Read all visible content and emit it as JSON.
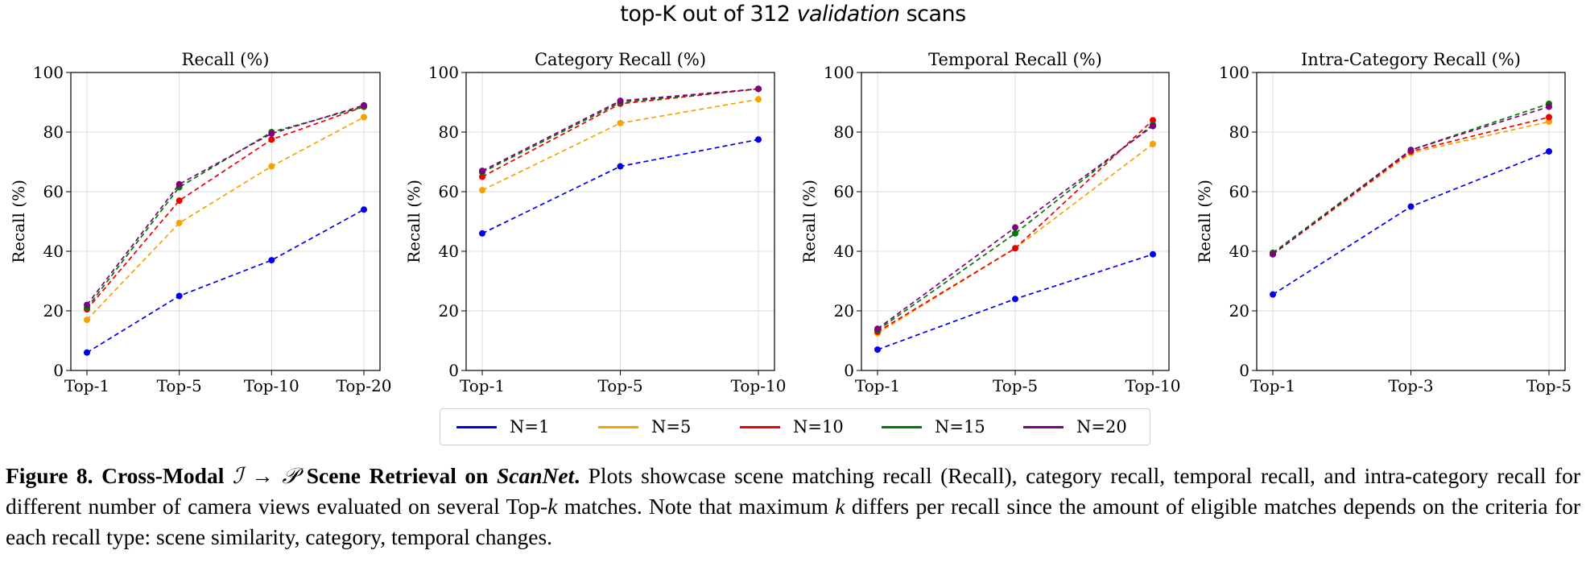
{
  "figure_title_parts": {
    "before": "top-K out of 312 ",
    "italic": "validation",
    "after": " scans"
  },
  "chart_data": [
    {
      "type": "line",
      "title": "Recall (%)",
      "ylabel": "Recall (%)",
      "categories": [
        "Top-1",
        "Top-5",
        "Top-10",
        "Top-20"
      ],
      "ylim": [
        0,
        100
      ],
      "yticks": [
        0,
        20,
        40,
        60,
        80,
        100
      ],
      "series": [
        {
          "name": "N=1",
          "values": [
            6,
            25,
            37,
            54
          ]
        },
        {
          "name": "N=5",
          "values": [
            17,
            49.5,
            68.5,
            85
          ]
        },
        {
          "name": "N=10",
          "values": [
            20.5,
            57,
            77.5,
            88.5
          ]
        },
        {
          "name": "N=15",
          "values": [
            21,
            61.5,
            80,
            88.5
          ]
        },
        {
          "name": "N=20",
          "values": [
            22,
            62.5,
            79.5,
            89
          ]
        }
      ]
    },
    {
      "type": "line",
      "title": "Category Recall (%)",
      "ylabel": "Recall (%)",
      "categories": [
        "Top-1",
        "Top-5",
        "Top-10"
      ],
      "ylim": [
        0,
        100
      ],
      "yticks": [
        0,
        20,
        40,
        60,
        80,
        100
      ],
      "series": [
        {
          "name": "N=1",
          "values": [
            46,
            68.5,
            77.5
          ]
        },
        {
          "name": "N=5",
          "values": [
            60.5,
            83,
            91
          ]
        },
        {
          "name": "N=10",
          "values": [
            65,
            89.5,
            94.5
          ]
        },
        {
          "name": "N=15",
          "values": [
            66.5,
            90,
            94.5
          ]
        },
        {
          "name": "N=20",
          "values": [
            67,
            90.5,
            94.5
          ]
        }
      ]
    },
    {
      "type": "line",
      "title": "Temporal Recall (%)",
      "ylabel": "Recall (%)",
      "categories": [
        "Top-1",
        "Top-5",
        "Top-10"
      ],
      "ylim": [
        0,
        100
      ],
      "yticks": [
        0,
        20,
        40,
        60,
        80,
        100
      ],
      "series": [
        {
          "name": "N=1",
          "values": [
            7,
            24,
            39
          ]
        },
        {
          "name": "N=5",
          "values": [
            12.5,
            41,
            76
          ]
        },
        {
          "name": "N=10",
          "values": [
            13,
            41,
            84
          ]
        },
        {
          "name": "N=15",
          "values": [
            13.5,
            46,
            82.5
          ]
        },
        {
          "name": "N=20",
          "values": [
            14,
            48,
            82
          ]
        }
      ]
    },
    {
      "type": "line",
      "title": "Intra-Category Recall (%)",
      "ylabel": "Recall (%)",
      "categories": [
        "Top-1",
        "Top-3",
        "Top-5"
      ],
      "ylim": [
        0,
        100
      ],
      "yticks": [
        0,
        20,
        40,
        60,
        80,
        100
      ],
      "series": [
        {
          "name": "N=1",
          "values": [
            25.5,
            55,
            73.5
          ]
        },
        {
          "name": "N=5",
          "values": [
            39,
            73,
            83.5
          ]
        },
        {
          "name": "N=10",
          "values": [
            39,
            73.5,
            85
          ]
        },
        {
          "name": "N=15",
          "values": [
            39.5,
            74,
            89.5
          ]
        },
        {
          "name": "N=20",
          "values": [
            39,
            74,
            88.5
          ]
        }
      ]
    }
  ],
  "legend": [
    {
      "label": "N=1",
      "color": "#0000ee"
    },
    {
      "label": "N=5",
      "color": "#f5a300"
    },
    {
      "label": "N=10",
      "color": "#ee0000"
    },
    {
      "label": "N=15",
      "color": "#007a00"
    },
    {
      "label": "N=20",
      "color": "#800080"
    }
  ],
  "caption": {
    "label": "Figure 8.",
    "bold_lead": "Cross-Modal",
    "symbol_from": "ℐ",
    "arrow": "→",
    "symbol_to": "𝒫",
    "bold_mid": "Scene Retrieval on",
    "bold_italic_name": "ScanNet",
    "bold_period": ".",
    "text_1": " Plots showcase scene matching recall (Recall), category recall, temporal recall, and intra-category recall for different number of camera views evaluated on several Top-",
    "var_k": "k",
    "text_2": " matches. Note that maximum ",
    "var_k2": "k",
    "text_3": " differs per recall since the amount of eligible matches depends on the criteria for each recall type: scene similarity, category, temporal changes."
  }
}
